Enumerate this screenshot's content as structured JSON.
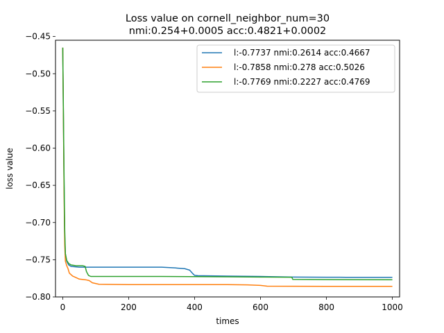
{
  "chart_data": {
    "type": "line",
    "title": [
      "Loss value on cornell_neighbor_num=30",
      "nmi:0.254+0.0005 acc:0.4821+0.0002"
    ],
    "xlabel": "times",
    "ylabel": "loss value",
    "xlim": [
      -22,
      1022
    ],
    "ylim": [
      -0.8,
      -0.455
    ],
    "xticks": [
      0,
      200,
      400,
      600,
      800,
      1000
    ],
    "yticks": [
      -0.45,
      -0.5,
      -0.55,
      -0.6,
      -0.65,
      -0.7,
      -0.75,
      -0.8
    ],
    "ytick_labels": [
      "−0.45",
      "−0.50",
      "−0.55",
      "−0.60",
      "−0.65",
      "−0.70",
      "−0.75",
      "−0.80"
    ],
    "legend_position": "top-right",
    "grid": false,
    "series": [
      {
        "name": "l:-0.7737 nmi:0.2614 acc:0.4667",
        "color": "#1f77b4",
        "points": [
          [
            0,
            -0.465
          ],
          [
            2,
            -0.56
          ],
          [
            4,
            -0.65
          ],
          [
            6,
            -0.72
          ],
          [
            8,
            -0.742
          ],
          [
            12,
            -0.752
          ],
          [
            18,
            -0.757
          ],
          [
            25,
            -0.759
          ],
          [
            50,
            -0.76
          ],
          [
            100,
            -0.76
          ],
          [
            200,
            -0.76
          ],
          [
            300,
            -0.76
          ],
          [
            340,
            -0.761
          ],
          [
            370,
            -0.762
          ],
          [
            385,
            -0.764
          ],
          [
            393,
            -0.768
          ],
          [
            400,
            -0.771
          ],
          [
            410,
            -0.7715
          ],
          [
            500,
            -0.772
          ],
          [
            600,
            -0.7725
          ],
          [
            700,
            -0.7733
          ],
          [
            800,
            -0.7735
          ],
          [
            840,
            -0.7735
          ],
          [
            860,
            -0.7737
          ],
          [
            1000,
            -0.7737
          ]
        ]
      },
      {
        "name": "l:-0.7858 nmi:0.278 acc:0.5026",
        "color": "#ff7f0e",
        "points": [
          [
            0,
            -0.465
          ],
          [
            2,
            -0.56
          ],
          [
            4,
            -0.66
          ],
          [
            6,
            -0.73
          ],
          [
            8,
            -0.752
          ],
          [
            12,
            -0.758
          ],
          [
            16,
            -0.762
          ],
          [
            20,
            -0.768
          ],
          [
            30,
            -0.772
          ],
          [
            40,
            -0.774
          ],
          [
            50,
            -0.776
          ],
          [
            70,
            -0.777
          ],
          [
            80,
            -0.778
          ],
          [
            90,
            -0.781
          ],
          [
            110,
            -0.783
          ],
          [
            200,
            -0.7835
          ],
          [
            300,
            -0.7835
          ],
          [
            400,
            -0.7835
          ],
          [
            500,
            -0.7835
          ],
          [
            560,
            -0.7838
          ],
          [
            600,
            -0.7845
          ],
          [
            620,
            -0.7855
          ],
          [
            700,
            -0.7857
          ],
          [
            800,
            -0.7858
          ],
          [
            1000,
            -0.7858
          ]
        ]
      },
      {
        "name": "l:-0.7769 nmi:0.2227 acc:0.4769",
        "color": "#2ca02c",
        "points": [
          [
            0,
            -0.465
          ],
          [
            2,
            -0.55
          ],
          [
            4,
            -0.64
          ],
          [
            6,
            -0.71
          ],
          [
            8,
            -0.742
          ],
          [
            12,
            -0.751
          ],
          [
            18,
            -0.755
          ],
          [
            25,
            -0.757
          ],
          [
            40,
            -0.758
          ],
          [
            60,
            -0.758
          ],
          [
            68,
            -0.759
          ],
          [
            72,
            -0.766
          ],
          [
            78,
            -0.771
          ],
          [
            85,
            -0.7725
          ],
          [
            200,
            -0.7725
          ],
          [
            300,
            -0.7725
          ],
          [
            400,
            -0.7727
          ],
          [
            500,
            -0.773
          ],
          [
            600,
            -0.7733
          ],
          [
            695,
            -0.7735
          ],
          [
            698,
            -0.7765
          ],
          [
            800,
            -0.7767
          ],
          [
            1000,
            -0.7769
          ]
        ]
      }
    ]
  }
}
